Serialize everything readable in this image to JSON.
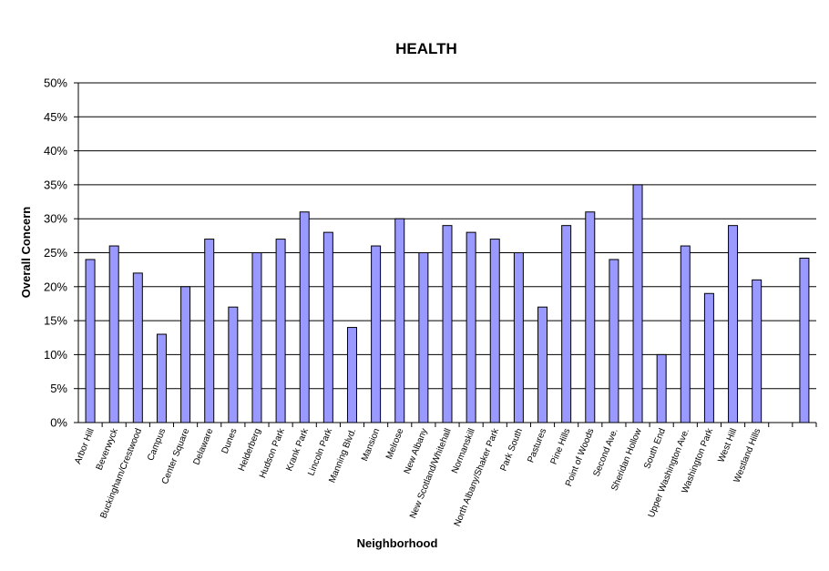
{
  "chart_data": {
    "type": "bar",
    "title": "HEALTH",
    "xlabel": "Neighborhood",
    "ylabel": "Overall Concern",
    "ylim": [
      0,
      0.5
    ],
    "yticks": [
      "0%",
      "5%",
      "10%",
      "15%",
      "20%",
      "25%",
      "30%",
      "35%",
      "40%",
      "45%",
      "50%"
    ],
    "grid": true,
    "legend": "none",
    "bar_color": "#9999FF",
    "categories": [
      "Arbor Hill",
      "Beverwyck",
      "Buckingham/Crestwood",
      "Campus",
      "Center Square",
      "Delaware",
      "Dunes",
      "Helderberg",
      "Hudson Park",
      "Krank Park",
      "Lincoln Park",
      "Manning Blvd.",
      "Mansion",
      "Melrose",
      "New Albany",
      "New Scotland/Whitehall",
      "Normanskill",
      "North Albany/Shaker Park",
      "Park South",
      "Pastures",
      "Pine Hills",
      "Point of Woods",
      "Second Ave.",
      "Sheridan Hollow",
      "South End",
      "Upper Washington Ave.",
      "Washington Park",
      "West Hill",
      "Westland Hills",
      "",
      ""
    ],
    "values": [
      0.24,
      0.26,
      0.22,
      0.13,
      0.2,
      0.27,
      0.17,
      0.25,
      0.27,
      0.31,
      0.28,
      0.14,
      0.26,
      0.3,
      0.25,
      0.29,
      0.28,
      0.27,
      0.25,
      0.17,
      0.29,
      0.31,
      0.24,
      0.35,
      0.1,
      0.26,
      0.19,
      0.29,
      0.21,
      null,
      0.242
    ]
  }
}
